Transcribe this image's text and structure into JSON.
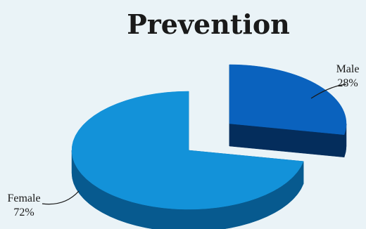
{
  "chart_data": {
    "type": "pie",
    "title": "Prevention",
    "categories": [
      "Male",
      "Female"
    ],
    "values": [
      28,
      72
    ],
    "value_labels": [
      "28%",
      "72%"
    ],
    "style": "3d-exploded",
    "colors": {
      "Male": {
        "top": "#0a62be",
        "side": "#042d5c"
      },
      "Female": {
        "top": "#1392d9",
        "side": "#075a8f"
      }
    }
  }
}
